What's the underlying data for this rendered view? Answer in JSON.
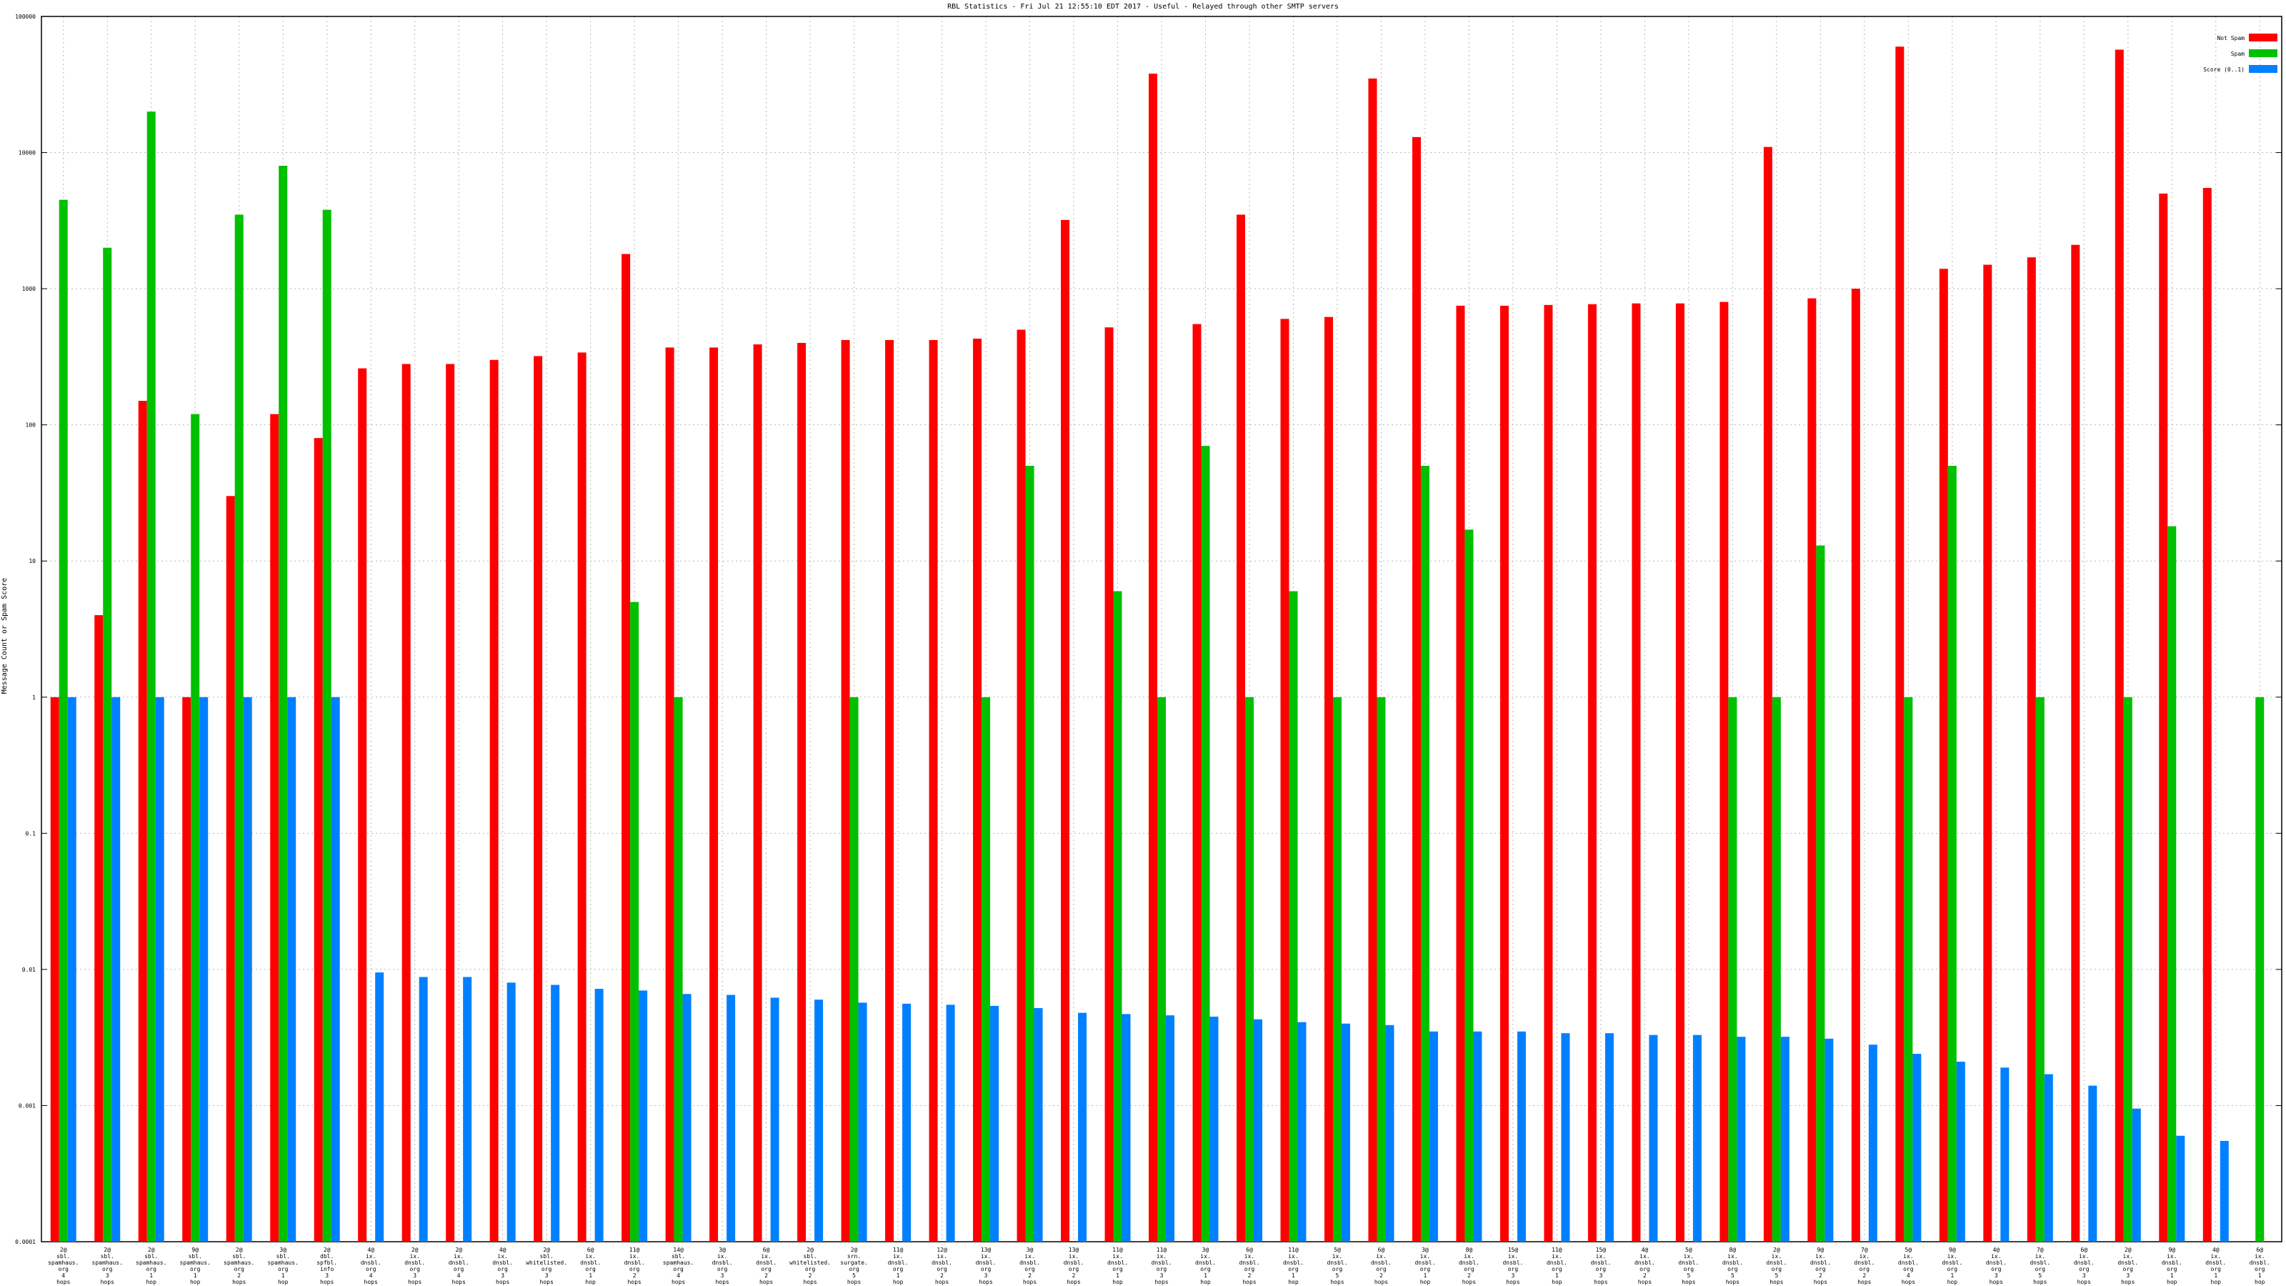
{
  "chart_data": {
    "type": "bar",
    "title": "RBL Statistics - Fri Jul 21 12:55:10 EDT 2017 - Useful - Relayed through other SMTP servers",
    "xlabel": "",
    "ylabel": "Message Count or Spam Score",
    "yscale": "log",
    "ylim": [
      0.0001,
      100000
    ],
    "yticks": [
      "0.0001",
      "0.001",
      "0.01",
      "0.1",
      "1",
      "10",
      "100",
      "1000",
      "10000",
      "100000"
    ],
    "grid": true,
    "legend_position": "top-right",
    "categories": [
      "2@ sbl. spamhaus. org 4 hops",
      "2@ sbl. spamhaus. org 3 hops",
      "2@ sbl. spamhaus. org 1 hop",
      "9@ sbl. spamhaus. org 1 hop",
      "2@ sbl. spamhaus. org 2 hops",
      "3@ sbl. spamhaus. org 1 hop",
      "2@ dbl. spfbl. info 3 hops",
      "4@ ix. dnsbl. org 4 hops",
      "2@ ix. dnsbl. org 3 hops",
      "2@ ix. dnsbl. org 4 hops",
      "4@ ix. dnsbl. org 3 hops",
      "2@ sbl. whitelisted. org 3 hops",
      "6@ ix. dnsbl. org 1 hop",
      "11@ ix. dnsbl. org 2 hops",
      "14@ sbl. spamhaus. org 4 hops",
      "3@ ix. dnsbl. org 3 hops",
      "6@ ix. dnsbl. org 2 hops",
      "2@ sbl. whitelisted. org 2 hops",
      "2@ srn. surgate. org 5 hops",
      "11@ ix. dnsbl. org 1 hop",
      "12@ ix. dnsbl. org 2 hops",
      "13@ ix. dnsbl. org 3 hops",
      "3@ ix. dnsbl. org 2 hops",
      "13@ ix. dnsbl. org 2 hops",
      "11@ ix. dnsbl. org 1 hop",
      "11@ ix. dnsbl. org 3 hops",
      "3@ ix. dnsbl. org 1 hop",
      "6@ ix. dnsbl. org 2 hops",
      "11@ ix. dnsbl. org 1 hop",
      "5@ ix. dnsbl. org 5 hops",
      "6@ ix. dnsbl. org 2 hops",
      "3@ ix. dnsbl. org 1 hop",
      "8@ ix. dnsbl. org 2 hops",
      "15@ ix. dnsbl. org 3 hops",
      "11@ ix. dnsbl. org 1 hop",
      "15@ ix. dnsbl. org 3 hops",
      "4@ ix. dnsbl. org 2 hops",
      "5@ ix. dnsbl. org 5 hops",
      "8@ ix. dnsbl. org 5 hops",
      "2@ ix. dnsbl. org 5 hops",
      "9@ ix. dnsbl. org 2 hops",
      "7@ ix. dnsbl. org 2 hops",
      "5@ ix. dnsbl. org 4 hops",
      "9@ ix. dnsbl. org 1 hop",
      "4@ ix. dnsbl. org 3 hops",
      "7@ ix. dnsbl. org 5 hops",
      "6@ ix. dnsbl. org 3 hops",
      "2@ ix. dnsbl. org 3 hops",
      "9@ ix. dnsbl. org 1 hop",
      "4@ ix. dnsbl. org 1 hop",
      "6@ ix. dnsbl. org 1 hop"
    ],
    "series": [
      {
        "name": "Not Spam",
        "color": "#ff0000",
        "values": [
          1,
          4,
          150,
          1,
          30,
          120,
          80,
          260,
          280,
          280,
          300,
          320,
          340,
          1800,
          370,
          370,
          390,
          400,
          420,
          420,
          420,
          430,
          500,
          3200,
          520,
          38000,
          550,
          3500,
          600,
          620,
          35000,
          13000,
          750,
          750,
          760,
          770,
          780,
          780,
          800,
          11000,
          850,
          1000,
          60000,
          1400,
          1500,
          1700,
          2100,
          57000,
          5000,
          5500,
          0
        ]
      },
      {
        "name": "Spam",
        "color": "#00c000",
        "values": [
          4500,
          2000,
          20000,
          120,
          3500,
          8000,
          3800,
          0,
          0,
          0,
          0,
          0,
          0,
          5,
          1,
          0,
          0,
          0,
          1,
          0,
          0,
          1,
          50,
          0,
          6,
          1,
          70,
          1,
          6,
          1,
          1,
          50,
          17,
          0,
          0,
          0,
          0,
          0,
          1,
          1,
          13,
          0,
          1,
          50,
          0,
          1,
          0,
          1,
          18,
          0,
          1
        ]
      },
      {
        "name": "Score (0..1)",
        "color": "#0080ff",
        "values": [
          1,
          1,
          1,
          1,
          1,
          1,
          1,
          0.0095,
          0.0088,
          0.0088,
          0.008,
          0.0077,
          0.0072,
          0.007,
          0.0066,
          0.0065,
          0.0062,
          0.006,
          0.0057,
          0.0056,
          0.0055,
          0.0054,
          0.0052,
          0.0048,
          0.0047,
          0.0046,
          0.0045,
          0.0043,
          0.0041,
          0.004,
          0.0039,
          0.0035,
          0.0035,
          0.0035,
          0.0034,
          0.0034,
          0.0033,
          0.0033,
          0.0032,
          0.0032,
          0.0031,
          0.0028,
          0.0024,
          0.0021,
          0.0019,
          0.0017,
          0.0014,
          0.00095,
          0.0006,
          0.00055,
          0
        ]
      }
    ]
  }
}
